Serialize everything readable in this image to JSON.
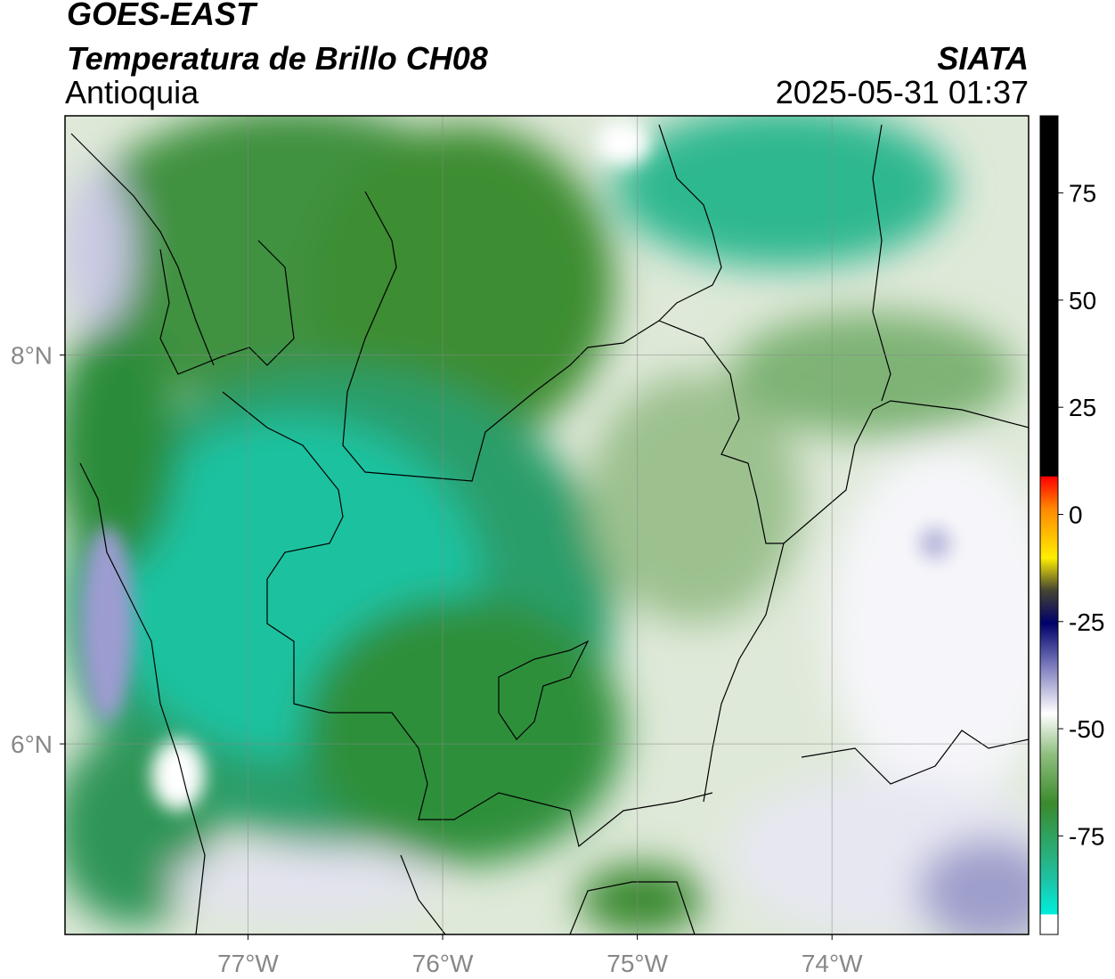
{
  "header": {
    "satellite": "GOES-EAST",
    "product": "Temperatura de Brillo CH08",
    "region": "Antioquia",
    "source": "SIATA",
    "datetime": "2025-05-31 01:37"
  },
  "map": {
    "xlim": [
      -77.94,
      -72.99
    ],
    "ylim": [
      5.02,
      9.23
    ],
    "xticks": [
      {
        "value": -77,
        "label": "77°W"
      },
      {
        "value": -76,
        "label": "76°W"
      },
      {
        "value": -75,
        "label": "75°W"
      },
      {
        "value": -74,
        "label": "74°W"
      }
    ],
    "yticks": [
      {
        "value": 8,
        "label": "8°N"
      },
      {
        "value": 6,
        "label": "6°N"
      }
    ],
    "grid": true
  },
  "colorbar": {
    "lim": [
      -98,
      93
    ],
    "ticks": [
      75,
      50,
      25,
      0,
      -25,
      -50,
      -75
    ]
  }
}
